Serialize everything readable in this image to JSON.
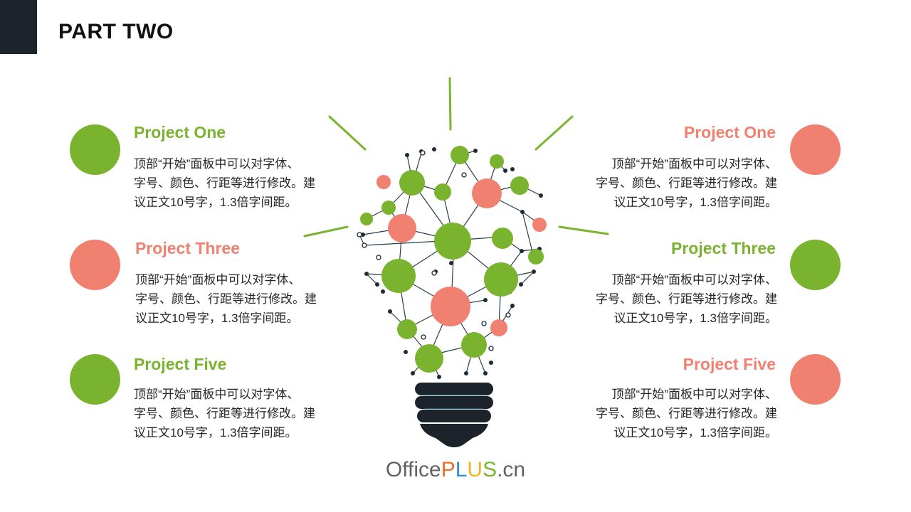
{
  "header": {
    "title": "PART TWO"
  },
  "colors": {
    "green": "#7ab32e",
    "pink": "#f08070",
    "dark": "#1c232b"
  },
  "items": [
    {
      "title": "Project One",
      "text": "顶部“开始”面板中可以对字体、\n字号、颜色、行距等进行修改。建\n议正文10号字，1.3倍字间距。"
    },
    {
      "title": "Project Three",
      "text": "顶部“开始”面板中可以对字体、\n字号、颜色、行距等进行修改。建\n议正文10号字，1.3倍字间距。"
    },
    {
      "title": "Project Five",
      "text": "顶部“开始”面板中可以对字体、\n字号、颜色、行距等进行修改。建\n议正文10号字，1.3倍字间距。"
    },
    {
      "title": "Project One",
      "text": "顶部“开始”面板中可以对字体、\n字号、颜色、行距等进行修改。建\n议正文10号字，1.3倍字间距。"
    },
    {
      "title": "Project Three",
      "text": "顶部“开始”面板中可以对字体、\n字号、颜色、行距等进行修改。建\n议正文10号字，1.3倍字间距。"
    },
    {
      "title": "Project Five",
      "text": "顶部“开始”面板中可以对字体、\n字号、颜色、行距等进行修改。建\n议正文10号字，1.3倍字间距。"
    }
  ],
  "footer": {
    "office": "Office",
    "p": "P",
    "l": "L",
    "u": "U",
    "s": "S",
    "cn": ".cn"
  },
  "illustration": {
    "icon": "lightbulb-network-icon"
  }
}
